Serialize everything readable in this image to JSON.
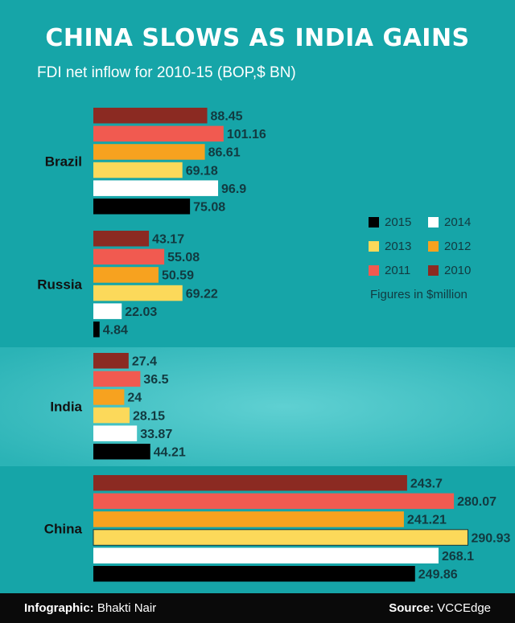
{
  "header": {
    "title": "CHINA SLOWS AS INDIA GAINS",
    "subtitle": "FDI net inflow for 2010-15 (BOP,$ BN)"
  },
  "legend": {
    "items": [
      {
        "label": "2015",
        "color": "#000000"
      },
      {
        "label": "2014",
        "color": "#ffffff"
      },
      {
        "label": "2013",
        "color": "#fcd95a"
      },
      {
        "label": "2012",
        "color": "#f7a21f"
      },
      {
        "label": "2011",
        "color": "#f15a50"
      },
      {
        "label": "2010",
        "color": "#8b2a22"
      }
    ],
    "note": "Figures in $million"
  },
  "footer": {
    "credit_label": "Infographic:",
    "credit_name": "Bhakti Nair",
    "source_label": "Source:",
    "source_name": "VCCEdge"
  },
  "chart_data": {
    "type": "bar",
    "orientation": "horizontal",
    "categories": [
      "Brazil",
      "Russia",
      "India",
      "China"
    ],
    "highlighted_category": "India",
    "series": [
      {
        "name": "2010",
        "color": "#8b2a22",
        "values": [
          88.45,
          43.17,
          27.4,
          243.7
        ],
        "labels": [
          "88.45",
          "43.17",
          "27.4",
          "243.7"
        ]
      },
      {
        "name": "2011",
        "color": "#f15a50",
        "values": [
          101.16,
          55.08,
          36.5,
          280.07
        ],
        "labels": [
          "101.16",
          "55.08",
          "36.5",
          "280.07"
        ]
      },
      {
        "name": "2012",
        "color": "#f7a21f",
        "values": [
          86.61,
          50.59,
          24,
          241.21
        ],
        "labels": [
          "86.61",
          "50.59",
          "24",
          "241.21"
        ]
      },
      {
        "name": "2013",
        "color": "#fcd95a",
        "values": [
          69.18,
          69.22,
          28.15,
          290.93
        ],
        "labels": [
          "69.18",
          "69.22",
          "28.15",
          "290.93"
        ]
      },
      {
        "name": "2014",
        "color": "#ffffff",
        "values": [
          96.9,
          22.03,
          33.87,
          268.1
        ],
        "labels": [
          "96.9",
          "22.03",
          "33.87",
          "268.1"
        ]
      },
      {
        "name": "2015",
        "color": "#000000",
        "values": [
          75.08,
          4.84,
          44.21,
          249.86
        ],
        "labels": [
          "75.08",
          "4.84",
          "44.21",
          "249.86"
        ]
      }
    ],
    "legend_position": "right",
    "grid": false
  }
}
